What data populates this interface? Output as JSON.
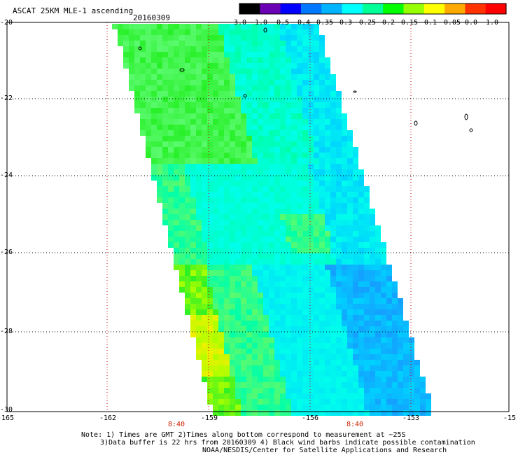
{
  "header": {
    "title": "ASCAT 25KM MLE-1 ascending",
    "date": "20160309"
  },
  "colorbar": {
    "labels": [
      "-3.0",
      "-1.0",
      "-0.5",
      "-0.4",
      "-0.35",
      "-0.3",
      "-0.25",
      "-0.2",
      "-0.15",
      "-0.1",
      "-0.05",
      "0.0",
      "1.0"
    ],
    "colors": [
      "#000000",
      "#6a00b4",
      "#0000ff",
      "#0077ff",
      "#00b4ff",
      "#00ffff",
      "#00ff96",
      "#00ff00",
      "#96ff00",
      "#ffff00",
      "#ffaa00",
      "#ff3300",
      "#ff0000"
    ]
  },
  "axes": {
    "lat_labels": [
      "-20",
      "-22",
      "-24",
      "-26",
      "-28",
      "-30"
    ],
    "lon_labels": [
      "-165",
      "-162",
      "-159",
      "-156",
      "-153",
      "-15"
    ],
    "time_labels": [
      "8:40",
      "8:40"
    ]
  },
  "notes": {
    "line1": "Note: 1) Times are GMT 2)Times along bottom correspond to measurement at ~25S",
    "line2": "3)Data buffer is 22 hrs from 20160309 4) Black wind barbs indicate possible contamination",
    "line3": "NOAA/NESDIS/Center for Satellite Applications and Research"
  }
}
